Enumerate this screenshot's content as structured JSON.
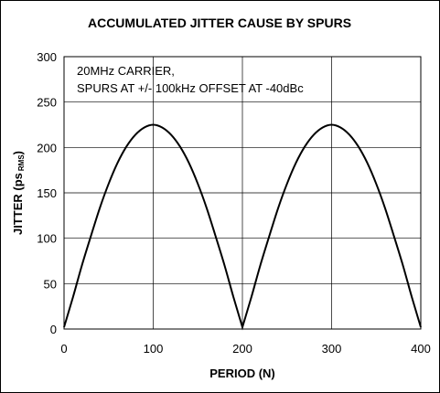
{
  "chart_data": {
    "type": "line",
    "title": "ACCUMULATED JITTER CAUSE BY SPURS",
    "xlabel": "PERIOD (N)",
    "ylabel": {
      "main": "JITTER (ps",
      "subscript": "RMS",
      "close": ")"
    },
    "xlim": [
      0,
      400
    ],
    "ylim": [
      0,
      300
    ],
    "xticks": [
      "0",
      "100",
      "200",
      "300",
      "400"
    ],
    "yticks": [
      "0",
      "50",
      "100",
      "150",
      "200",
      "250",
      "300"
    ],
    "grid": true,
    "annotations": [
      "20MHz CARRIER,",
      "SPURS AT +/- 100kHz OFFSET AT -40dBc"
    ],
    "series": [
      {
        "color": "#000000",
        "x": [
          0,
          10,
          20,
          30,
          40,
          50,
          60,
          70,
          80,
          90,
          100,
          110,
          120,
          130,
          140,
          150,
          160,
          170,
          180,
          190,
          200,
          210,
          220,
          230,
          240,
          250,
          260,
          270,
          280,
          290,
          300,
          310,
          320,
          330,
          340,
          350,
          360,
          370,
          380,
          390,
          400
        ],
        "y": [
          2,
          35,
          70,
          102,
          133,
          160,
          183,
          201,
          214,
          222,
          225,
          222,
          214,
          201,
          183,
          160,
          133,
          102,
          70,
          35,
          2,
          35,
          70,
          102,
          133,
          160,
          183,
          201,
          214,
          222,
          225,
          222,
          214,
          201,
          183,
          160,
          133,
          102,
          70,
          35,
          2
        ]
      }
    ]
  }
}
